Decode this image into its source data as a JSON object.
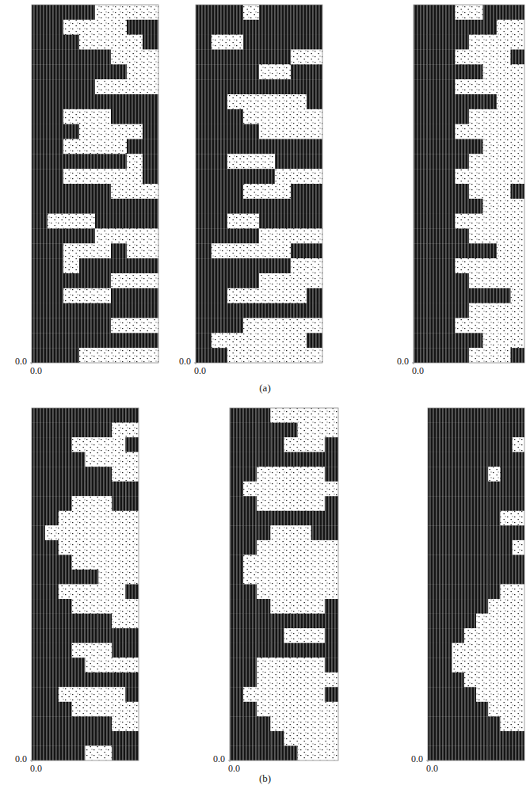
{
  "row_labels": [
    "(a)",
    "(b)"
  ],
  "chart_data": [
    {
      "type": "heatmap",
      "xlim": [
        0,
        1
      ],
      "ylim": [
        0,
        1
      ],
      "xticks": [
        {
          "value": 0,
          "label": "0.0"
        }
      ],
      "yticks": [
        {
          "value": 0,
          "label": "0.0"
        }
      ],
      "cells": [
        [
          1,
          1,
          1,
          1,
          0,
          0,
          0,
          0
        ],
        [
          1,
          1,
          0,
          0,
          0,
          0,
          1,
          1
        ],
        [
          1,
          1,
          1,
          0,
          0,
          0,
          0,
          1
        ],
        [
          1,
          1,
          1,
          1,
          1,
          0,
          0,
          0
        ],
        [
          1,
          1,
          1,
          1,
          1,
          1,
          0,
          0
        ],
        [
          1,
          1,
          1,
          1,
          0,
          0,
          0,
          0
        ],
        [
          1,
          1,
          1,
          1,
          1,
          1,
          1,
          1
        ],
        [
          1,
          1,
          0,
          0,
          0,
          1,
          1,
          1
        ],
        [
          1,
          1,
          1,
          0,
          0,
          0,
          0,
          1
        ],
        [
          1,
          1,
          0,
          0,
          0,
          0,
          1,
          1
        ],
        [
          1,
          1,
          1,
          1,
          1,
          1,
          0,
          1
        ],
        [
          1,
          1,
          0,
          0,
          0,
          0,
          0,
          1
        ],
        [
          1,
          1,
          1,
          1,
          1,
          0,
          0,
          0
        ],
        [
          1,
          1,
          1,
          1,
          1,
          1,
          1,
          1
        ],
        [
          1,
          0,
          0,
          0,
          1,
          1,
          1,
          1
        ],
        [
          1,
          1,
          1,
          1,
          0,
          0,
          0,
          0
        ],
        [
          1,
          1,
          0,
          0,
          0,
          1,
          0,
          0
        ],
        [
          1,
          1,
          0,
          1,
          1,
          1,
          1,
          1
        ],
        [
          1,
          1,
          1,
          1,
          1,
          0,
          0,
          0
        ],
        [
          1,
          1,
          0,
          0,
          0,
          1,
          1,
          1
        ],
        [
          1,
          1,
          1,
          1,
          1,
          1,
          1,
          1
        ],
        [
          1,
          1,
          1,
          1,
          1,
          0,
          0,
          0
        ],
        [
          1,
          1,
          1,
          1,
          1,
          1,
          1,
          1
        ],
        [
          1,
          1,
          1,
          0,
          0,
          0,
          0,
          0
        ]
      ]
    },
    {
      "type": "heatmap",
      "xlim": [
        0,
        1
      ],
      "ylim": [
        0,
        1
      ],
      "xticks": [
        {
          "value": 0,
          "label": "0.0"
        }
      ],
      "yticks": [
        {
          "value": 0,
          "label": "0.0"
        }
      ],
      "cells": [
        [
          1,
          1,
          1,
          0,
          1,
          1,
          1,
          1
        ],
        [
          1,
          1,
          1,
          1,
          1,
          1,
          1,
          1
        ],
        [
          1,
          0,
          0,
          1,
          1,
          1,
          1,
          1
        ],
        [
          1,
          1,
          1,
          1,
          1,
          1,
          0,
          0
        ],
        [
          1,
          1,
          1,
          1,
          0,
          0,
          1,
          1
        ],
        [
          1,
          1,
          1,
          1,
          1,
          1,
          1,
          1
        ],
        [
          1,
          1,
          0,
          0,
          0,
          0,
          0,
          1
        ],
        [
          1,
          1,
          1,
          0,
          0,
          0,
          0,
          0
        ],
        [
          1,
          1,
          1,
          1,
          0,
          0,
          0,
          0
        ],
        [
          1,
          1,
          1,
          1,
          1,
          1,
          1,
          1
        ],
        [
          1,
          1,
          0,
          0,
          0,
          1,
          1,
          1
        ],
        [
          1,
          1,
          1,
          1,
          1,
          0,
          0,
          0
        ],
        [
          1,
          1,
          1,
          0,
          0,
          0,
          1,
          1
        ],
        [
          1,
          1,
          1,
          1,
          1,
          1,
          1,
          1
        ],
        [
          1,
          1,
          0,
          0,
          1,
          1,
          1,
          1
        ],
        [
          1,
          1,
          1,
          1,
          0,
          0,
          0,
          0
        ],
        [
          1,
          0,
          0,
          0,
          0,
          0,
          1,
          1
        ],
        [
          1,
          1,
          1,
          1,
          1,
          1,
          0,
          0
        ],
        [
          1,
          1,
          1,
          1,
          0,
          0,
          0,
          0
        ],
        [
          1,
          1,
          0,
          0,
          0,
          0,
          0,
          1
        ],
        [
          1,
          1,
          1,
          1,
          1,
          1,
          1,
          1
        ],
        [
          1,
          1,
          1,
          0,
          0,
          0,
          0,
          0
        ],
        [
          1,
          0,
          0,
          0,
          0,
          0,
          0,
          1
        ],
        [
          1,
          1,
          0,
          0,
          0,
          0,
          0,
          0
        ]
      ]
    },
    {
      "type": "heatmap",
      "xlim": [
        0,
        1
      ],
      "ylim": [
        0,
        1
      ],
      "xticks": [
        {
          "value": 0,
          "label": "0.0"
        }
      ],
      "yticks": [
        {
          "value": 0,
          "label": "0.0"
        }
      ],
      "cells": [
        [
          1,
          1,
          1,
          0,
          0,
          1,
          1,
          1
        ],
        [
          1,
          1,
          1,
          1,
          1,
          1,
          0,
          0
        ],
        [
          1,
          1,
          1,
          1,
          0,
          0,
          0,
          0
        ],
        [
          1,
          1,
          1,
          0,
          0,
          0,
          0,
          1
        ],
        [
          1,
          1,
          1,
          1,
          1,
          0,
          0,
          0
        ],
        [
          1,
          1,
          1,
          0,
          0,
          0,
          0,
          0
        ],
        [
          1,
          1,
          1,
          1,
          1,
          1,
          0,
          0
        ],
        [
          1,
          1,
          1,
          1,
          0,
          0,
          0,
          0
        ],
        [
          1,
          1,
          1,
          0,
          0,
          0,
          0,
          0
        ],
        [
          1,
          1,
          1,
          1,
          1,
          0,
          0,
          0
        ],
        [
          1,
          1,
          1,
          1,
          0,
          0,
          0,
          0
        ],
        [
          1,
          1,
          1,
          0,
          0,
          0,
          0,
          0
        ],
        [
          1,
          1,
          1,
          1,
          0,
          0,
          0,
          1
        ],
        [
          1,
          1,
          1,
          1,
          1,
          0,
          0,
          0
        ],
        [
          1,
          1,
          1,
          0,
          0,
          0,
          0,
          0
        ],
        [
          1,
          1,
          1,
          1,
          0,
          0,
          0,
          0
        ],
        [
          1,
          1,
          1,
          1,
          1,
          1,
          0,
          0
        ],
        [
          1,
          1,
          1,
          0,
          0,
          0,
          0,
          0
        ],
        [
          1,
          1,
          1,
          1,
          0,
          0,
          0,
          0
        ],
        [
          1,
          1,
          1,
          1,
          1,
          1,
          1,
          0
        ],
        [
          1,
          1,
          1,
          1,
          0,
          0,
          0,
          0
        ],
        [
          1,
          1,
          1,
          0,
          0,
          0,
          0,
          0
        ],
        [
          1,
          1,
          1,
          1,
          1,
          0,
          0,
          0
        ],
        [
          1,
          1,
          1,
          1,
          0,
          0,
          0,
          1
        ]
      ]
    },
    {
      "type": "heatmap",
      "xlim": [
        0,
        1
      ],
      "ylim": [
        0,
        1
      ],
      "xticks": [
        {
          "value": 0,
          "label": "0.0"
        }
      ],
      "yticks": [
        {
          "value": 0,
          "label": "0.0"
        }
      ],
      "cells": [
        [
          1,
          1,
          1,
          1,
          1,
          1,
          1,
          1
        ],
        [
          1,
          1,
          1,
          1,
          1,
          1,
          0,
          0
        ],
        [
          1,
          1,
          1,
          0,
          0,
          0,
          0,
          1
        ],
        [
          1,
          1,
          1,
          1,
          0,
          0,
          0,
          0
        ],
        [
          1,
          1,
          1,
          1,
          1,
          1,
          0,
          0
        ],
        [
          1,
          1,
          1,
          1,
          1,
          1,
          1,
          1
        ],
        [
          1,
          1,
          1,
          0,
          0,
          0,
          1,
          1
        ],
        [
          1,
          1,
          0,
          0,
          0,
          0,
          0,
          0
        ],
        [
          1,
          0,
          0,
          0,
          0,
          0,
          0,
          0
        ],
        [
          1,
          1,
          0,
          0,
          0,
          0,
          0,
          0
        ],
        [
          1,
          1,
          1,
          0,
          0,
          0,
          0,
          0
        ],
        [
          1,
          1,
          1,
          1,
          1,
          0,
          0,
          0
        ],
        [
          1,
          1,
          0,
          0,
          0,
          0,
          0,
          1
        ],
        [
          1,
          1,
          1,
          0,
          0,
          0,
          0,
          0
        ],
        [
          1,
          1,
          1,
          1,
          1,
          1,
          0,
          0
        ],
        [
          1,
          1,
          1,
          1,
          1,
          1,
          1,
          1
        ],
        [
          1,
          1,
          1,
          0,
          0,
          0,
          1,
          1
        ],
        [
          1,
          1,
          1,
          1,
          0,
          0,
          0,
          0
        ],
        [
          1,
          1,
          1,
          1,
          1,
          1,
          1,
          1
        ],
        [
          1,
          1,
          0,
          0,
          0,
          0,
          0,
          1
        ],
        [
          1,
          1,
          1,
          0,
          0,
          0,
          0,
          0
        ],
        [
          1,
          1,
          1,
          1,
          1,
          1,
          0,
          0
        ],
        [
          1,
          1,
          1,
          1,
          1,
          1,
          1,
          1
        ],
        [
          1,
          1,
          1,
          1,
          0,
          0,
          1,
          1
        ]
      ]
    },
    {
      "type": "heatmap",
      "xlim": [
        0,
        1
      ],
      "ylim": [
        0,
        1
      ],
      "xticks": [
        {
          "value": 0,
          "label": "0.0"
        }
      ],
      "yticks": [
        {
          "value": 0,
          "label": "0.0"
        }
      ],
      "cells": [
        [
          1,
          1,
          1,
          0,
          0,
          0,
          0,
          0
        ],
        [
          1,
          1,
          1,
          1,
          1,
          0,
          0,
          0
        ],
        [
          1,
          1,
          1,
          1,
          0,
          0,
          0,
          1
        ],
        [
          1,
          1,
          1,
          1,
          1,
          1,
          1,
          1
        ],
        [
          1,
          1,
          0,
          0,
          0,
          0,
          0,
          1
        ],
        [
          1,
          0,
          0,
          0,
          0,
          0,
          0,
          0
        ],
        [
          1,
          1,
          0,
          0,
          0,
          0,
          0,
          1
        ],
        [
          1,
          1,
          1,
          1,
          1,
          1,
          1,
          1
        ],
        [
          1,
          1,
          1,
          0,
          0,
          0,
          1,
          1
        ],
        [
          1,
          1,
          0,
          0,
          0,
          0,
          0,
          0
        ],
        [
          1,
          0,
          0,
          0,
          0,
          0,
          0,
          0
        ],
        [
          1,
          0,
          0,
          0,
          0,
          0,
          0,
          0
        ],
        [
          1,
          1,
          0,
          0,
          0,
          0,
          0,
          0
        ],
        [
          1,
          1,
          1,
          0,
          0,
          0,
          0,
          1
        ],
        [
          1,
          1,
          1,
          1,
          1,
          1,
          1,
          1
        ],
        [
          1,
          1,
          1,
          1,
          0,
          0,
          0,
          1
        ],
        [
          1,
          1,
          1,
          1,
          1,
          1,
          1,
          1
        ],
        [
          1,
          1,
          0,
          0,
          0,
          0,
          0,
          1
        ],
        [
          1,
          1,
          0,
          0,
          0,
          0,
          0,
          0
        ],
        [
          1,
          0,
          0,
          0,
          0,
          0,
          0,
          1
        ],
        [
          1,
          1,
          0,
          0,
          0,
          0,
          0,
          0
        ],
        [
          1,
          1,
          1,
          0,
          0,
          0,
          0,
          0
        ],
        [
          1,
          1,
          1,
          1,
          0,
          0,
          0,
          0
        ],
        [
          1,
          1,
          1,
          1,
          1,
          0,
          0,
          0
        ]
      ]
    },
    {
      "type": "heatmap",
      "xlim": [
        0,
        1
      ],
      "ylim": [
        0,
        1
      ],
      "xticks": [
        {
          "value": 0,
          "label": "0.0"
        }
      ],
      "yticks": [
        {
          "value": 0,
          "label": "0.0"
        }
      ],
      "cells": [
        [
          1,
          1,
          1,
          1,
          1,
          1,
          1,
          1
        ],
        [
          1,
          1,
          1,
          1,
          1,
          1,
          1,
          1
        ],
        [
          1,
          1,
          1,
          1,
          1,
          1,
          1,
          0
        ],
        [
          1,
          1,
          1,
          1,
          1,
          1,
          1,
          1
        ],
        [
          1,
          1,
          1,
          1,
          1,
          0,
          1,
          1
        ],
        [
          1,
          1,
          1,
          1,
          1,
          1,
          1,
          1
        ],
        [
          1,
          1,
          1,
          1,
          1,
          1,
          1,
          1
        ],
        [
          1,
          1,
          1,
          1,
          1,
          1,
          0,
          0
        ],
        [
          1,
          1,
          1,
          1,
          1,
          1,
          1,
          1
        ],
        [
          1,
          1,
          1,
          1,
          1,
          1,
          1,
          0
        ],
        [
          1,
          1,
          1,
          1,
          1,
          1,
          1,
          1
        ],
        [
          1,
          1,
          1,
          1,
          1,
          1,
          1,
          1
        ],
        [
          1,
          1,
          1,
          1,
          1,
          1,
          0,
          0
        ],
        [
          1,
          1,
          1,
          1,
          1,
          0,
          0,
          0
        ],
        [
          1,
          1,
          1,
          1,
          0,
          0,
          0,
          0
        ],
        [
          1,
          1,
          1,
          0,
          0,
          0,
          0,
          0
        ],
        [
          1,
          1,
          0,
          0,
          0,
          0,
          0,
          0
        ],
        [
          1,
          1,
          0,
          0,
          0,
          0,
          0,
          0
        ],
        [
          1,
          1,
          1,
          0,
          0,
          0,
          0,
          0
        ],
        [
          1,
          1,
          1,
          1,
          0,
          0,
          0,
          0
        ],
        [
          1,
          1,
          1,
          1,
          1,
          0,
          0,
          0
        ],
        [
          1,
          1,
          1,
          1,
          1,
          1,
          0,
          0
        ],
        [
          1,
          1,
          1,
          1,
          1,
          1,
          1,
          1
        ],
        [
          1,
          1,
          1,
          1,
          1,
          1,
          1,
          1
        ]
      ]
    }
  ]
}
